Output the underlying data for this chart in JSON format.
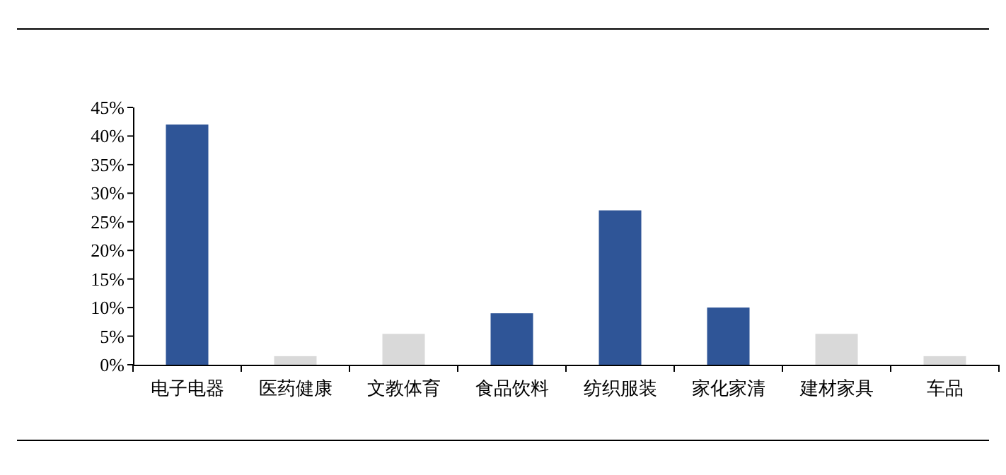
{
  "chart_data": {
    "type": "bar",
    "categories": [
      "电子电器",
      "医药健康",
      "文教体育",
      "食品饮料",
      "纺织服装",
      "家化家清",
      "建材家具",
      "车品"
    ],
    "values": [
      42,
      1.5,
      5.4,
      9,
      27,
      10,
      5.4,
      1.5
    ],
    "colors": [
      "#2f5597",
      "#d9d9d9",
      "#d9d9d9",
      "#2f5597",
      "#2f5597",
      "#2f5597",
      "#d9d9d9",
      "#d9d9d9"
    ],
    "ylim": [
      0,
      45
    ],
    "yticks": [
      {
        "value": 0,
        "label": "0%"
      },
      {
        "value": 5,
        "label": "5%"
      },
      {
        "value": 10,
        "label": "10%"
      },
      {
        "value": 15,
        "label": "15%"
      },
      {
        "value": 20,
        "label": "20%"
      },
      {
        "value": 25,
        "label": "25%"
      },
      {
        "value": 30,
        "label": "30%"
      },
      {
        "value": 35,
        "label": "35%"
      },
      {
        "value": 40,
        "label": "40%"
      },
      {
        "value": 45,
        "label": "45%"
      }
    ],
    "grid": false
  }
}
